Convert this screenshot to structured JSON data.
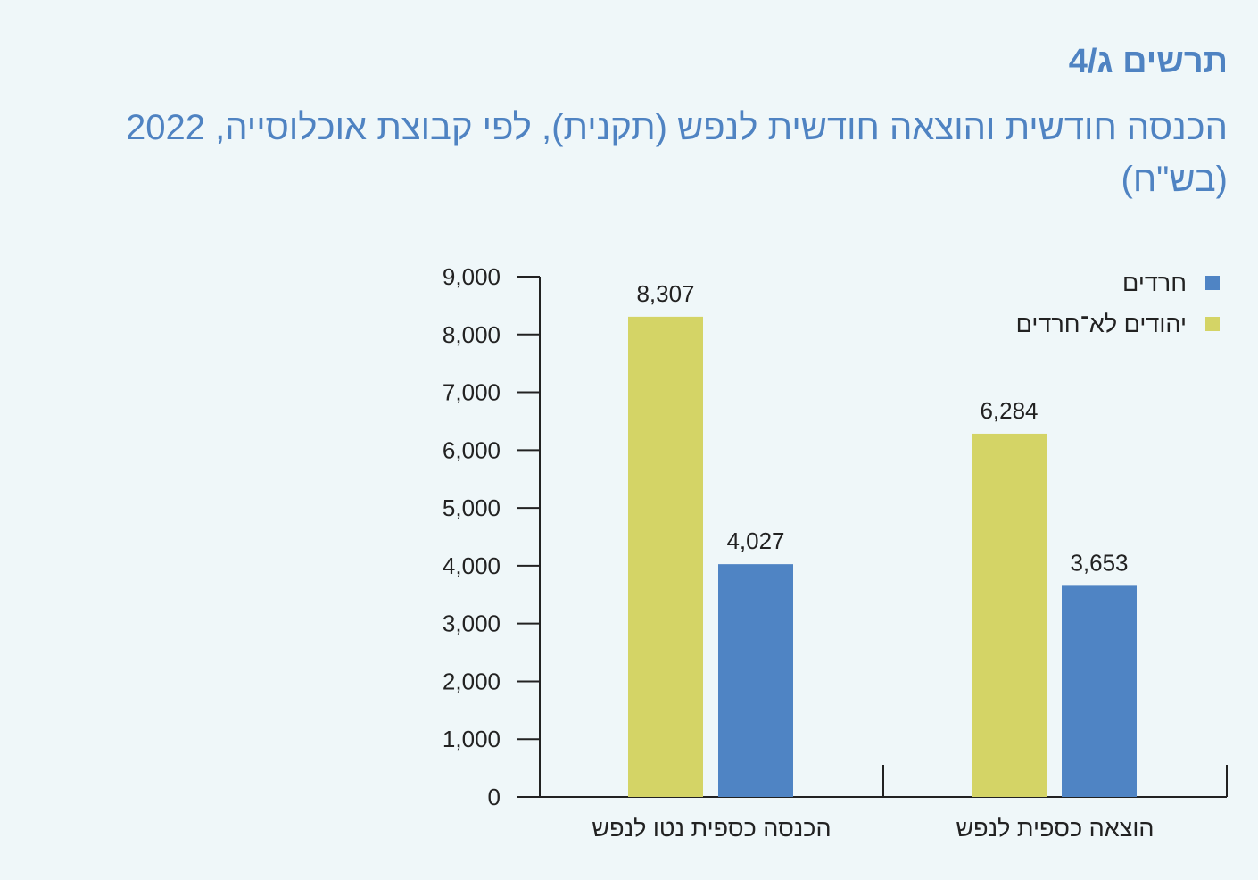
{
  "header": {
    "figure_label": "תרשים ג/4",
    "title": "הכנסה חודשית והוצאה חודשית לנפש (תקנית), לפי קבוצת אוכלוסייה, 2022 (בש\"ח)"
  },
  "chart_data": {
    "type": "bar",
    "title": "הכנסה חודשית והוצאה חודשית לנפש (תקנית), לפי קבוצת אוכלוסייה, 2022 (בש\"ח)",
    "categories": [
      "הכנסה כספית נטו לנפש",
      "הוצאה כספית לנפש"
    ],
    "series": [
      {
        "name": "יהודים לא־חרדים",
        "color": "#d4d466",
        "values": [
          8307,
          6284
        ],
        "labels": [
          "8,307",
          "6,284"
        ]
      },
      {
        "name": "חרדים",
        "color": "#4f84c4",
        "values": [
          4027,
          3653
        ],
        "labels": [
          "4,027",
          "3,653"
        ]
      }
    ],
    "legend_order": [
      "חרדים",
      "יהודים לא־חרדים"
    ],
    "ylim": [
      0,
      9000
    ],
    "yticks": [
      0,
      1000,
      2000,
      3000,
      4000,
      5000,
      6000,
      7000,
      8000,
      9000
    ],
    "ytick_labels": [
      "0",
      "1,000",
      "2,000",
      "3,000",
      "4,000",
      "5,000",
      "6,000",
      "7,000",
      "8,000",
      "9,000"
    ],
    "legend_position": "top-right",
    "grid": false,
    "xlabel": "",
    "ylabel": ""
  }
}
